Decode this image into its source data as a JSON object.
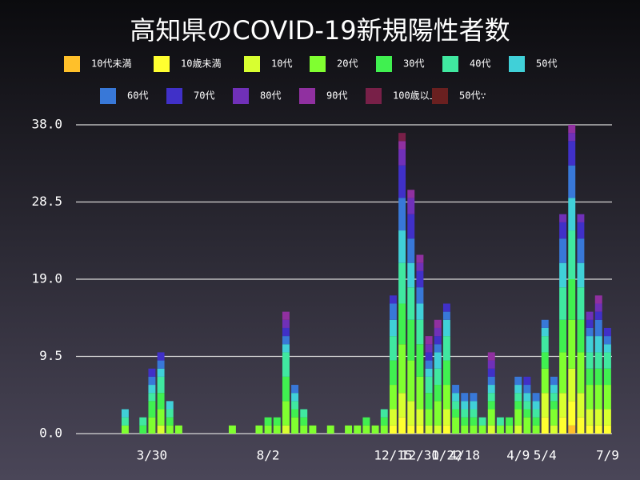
{
  "chart_data": {
    "type": "stacked_bar",
    "title": "高知県のCOVID-19新規陽性者数",
    "categories": [
      null,
      null,
      null,
      null,
      null,
      null,
      null,
      null,
      "3/30",
      null,
      null,
      null,
      null,
      null,
      null,
      null,
      null,
      null,
      null,
      null,
      null,
      "8/2",
      null,
      null,
      null,
      null,
      null,
      null,
      null,
      null,
      null,
      null,
      null,
      null,
      null,
      "12/15",
      null,
      null,
      "12/30",
      null,
      null,
      "1/22",
      null,
      "4/18",
      null,
      null,
      null,
      null,
      null,
      "4/9",
      null,
      null,
      "5/4",
      null,
      null,
      null,
      null,
      null,
      null,
      "7/9"
    ],
    "ylim": [
      0,
      38
    ],
    "yticks": [
      {
        "value": 0,
        "label": "0.0"
      },
      {
        "value": 9.5,
        "label": "9.5"
      },
      {
        "value": 19,
        "label": "19.0"
      },
      {
        "value": 28.5,
        "label": "28.5"
      },
      {
        "value": 38,
        "label": "38.0"
      }
    ],
    "grid": true,
    "series": [
      {
        "name": "10代未満",
        "color": "#ffc02a",
        "values": [
          0,
          0,
          0,
          0,
          0,
          0,
          0,
          0,
          0,
          0,
          0,
          0,
          0,
          0,
          0,
          0,
          0,
          0,
          0,
          0,
          0,
          0,
          0,
          0,
          0,
          0,
          0,
          0,
          0,
          0,
          0,
          0,
          0,
          0,
          0,
          0,
          0,
          0,
          0,
          0,
          0,
          0,
          0,
          0,
          0,
          0,
          0,
          0,
          0,
          0,
          0,
          0,
          0,
          0,
          0,
          1,
          0,
          0,
          0,
          0
        ]
      },
      {
        "name": "10歳未満",
        "color": "#ffff30",
        "values": [
          0,
          0,
          0,
          0,
          0,
          0,
          0,
          0,
          0,
          0,
          0,
          0,
          0,
          0,
          0,
          0,
          0,
          0,
          0,
          0,
          0,
          0,
          0,
          0,
          0,
          0,
          0,
          0,
          0,
          0,
          0,
          0,
          0,
          0,
          0,
          1,
          2,
          1,
          1,
          0,
          0,
          1,
          0,
          0,
          0,
          0,
          0,
          0,
          0,
          0,
          0,
          0,
          2,
          0,
          2,
          3,
          2,
          1,
          1,
          1
        ]
      },
      {
        "name": "10代",
        "color": "#d8ff30",
        "values": [
          0,
          0,
          0,
          0,
          0,
          0,
          0,
          0,
          0,
          1,
          0,
          0,
          0,
          0,
          0,
          0,
          0,
          0,
          0,
          0,
          0,
          0,
          0,
          1,
          0,
          0,
          0,
          0,
          0,
          0,
          0,
          0,
          0,
          0,
          0,
          2,
          3,
          3,
          2,
          1,
          1,
          2,
          0,
          0,
          0,
          0,
          1,
          0,
          0,
          1,
          0,
          0,
          3,
          1,
          3,
          4,
          3,
          2,
          2,
          2
        ]
      },
      {
        "name": "20代",
        "color": "#80ff30",
        "values": [
          0,
          0,
          0,
          0,
          0,
          1,
          0,
          0,
          2,
          2,
          1,
          1,
          0,
          0,
          0,
          0,
          0,
          1,
          0,
          0,
          1,
          1,
          1,
          3,
          2,
          1,
          1,
          0,
          1,
          0,
          1,
          1,
          1,
          1,
          1,
          3,
          6,
          5,
          4,
          2,
          3,
          3,
          2,
          1,
          1,
          1,
          2,
          1,
          1,
          2,
          2,
          1,
          3,
          2,
          5,
          6,
          5,
          3,
          3,
          3
        ]
      },
      {
        "name": "30代",
        "color": "#40f050",
        "values": [
          0,
          0,
          0,
          0,
          0,
          0,
          0,
          1,
          2,
          2,
          1,
          0,
          0,
          0,
          0,
          0,
          0,
          0,
          0,
          0,
          0,
          1,
          1,
          3,
          1,
          1,
          0,
          0,
          0,
          0,
          0,
          0,
          1,
          0,
          1,
          3,
          5,
          5,
          4,
          2,
          2,
          3,
          1,
          1,
          1,
          0,
          1,
          0,
          1,
          1,
          1,
          1,
          2,
          1,
          4,
          5,
          4,
          2,
          2,
          2
        ]
      },
      {
        "name": "40代",
        "color": "#40e8a0",
        "values": [
          0,
          0,
          0,
          0,
          0,
          1,
          0,
          1,
          1,
          2,
          1,
          0,
          0,
          0,
          0,
          0,
          0,
          0,
          0,
          0,
          0,
          0,
          0,
          3,
          1,
          1,
          0,
          0,
          0,
          0,
          0,
          0,
          0,
          0,
          1,
          3,
          5,
          4,
          3,
          2,
          2,
          3,
          1,
          1,
          1,
          1,
          1,
          1,
          0,
          1,
          1,
          1,
          2,
          1,
          4,
          6,
          4,
          2,
          2,
          2
        ]
      },
      {
        "name": "50代",
        "color": "#40d0d8",
        "values": [
          0,
          0,
          0,
          0,
          0,
          1,
          0,
          0,
          1,
          1,
          1,
          0,
          0,
          0,
          0,
          0,
          0,
          0,
          0,
          0,
          0,
          0,
          0,
          1,
          1,
          0,
          0,
          0,
          0,
          0,
          0,
          0,
          0,
          0,
          0,
          2,
          4,
          3,
          2,
          1,
          2,
          2,
          1,
          1,
          1,
          0,
          1,
          0,
          0,
          1,
          1,
          1,
          1,
          1,
          3,
          4,
          3,
          2,
          2,
          1
        ]
      },
      {
        "name": "60代",
        "color": "#3878d8",
        "values": [
          0,
          0,
          0,
          0,
          0,
          0,
          0,
          0,
          1,
          1,
          0,
          0,
          0,
          0,
          0,
          0,
          0,
          0,
          0,
          0,
          0,
          0,
          0,
          1,
          1,
          0,
          0,
          0,
          0,
          0,
          0,
          0,
          0,
          0,
          0,
          2,
          4,
          3,
          2,
          1,
          1,
          1,
          1,
          1,
          1,
          0,
          1,
          0,
          0,
          1,
          1,
          1,
          1,
          1,
          3,
          4,
          3,
          1,
          2,
          1
        ]
      },
      {
        "name": "70代",
        "color": "#4030c8",
        "values": [
          0,
          0,
          0,
          0,
          0,
          0,
          0,
          0,
          1,
          1,
          0,
          0,
          0,
          0,
          0,
          0,
          0,
          0,
          0,
          0,
          0,
          0,
          0,
          1,
          0,
          0,
          0,
          0,
          0,
          0,
          0,
          0,
          0,
          0,
          0,
          1,
          4,
          3,
          2,
          1,
          1,
          1,
          0,
          0,
          0,
          0,
          1,
          0,
          0,
          0,
          1,
          0,
          0,
          0,
          2,
          3,
          2,
          1,
          1,
          1
        ]
      },
      {
        "name": "80代",
        "color": "#7030b8",
        "values": [
          0,
          0,
          0,
          0,
          0,
          0,
          0,
          0,
          0,
          0,
          0,
          0,
          0,
          0,
          0,
          0,
          0,
          0,
          0,
          0,
          0,
          0,
          0,
          1,
          0,
          0,
          0,
          0,
          0,
          0,
          0,
          0,
          0,
          0,
          0,
          0,
          2,
          2,
          1,
          1,
          1,
          0,
          0,
          0,
          0,
          0,
          1,
          0,
          0,
          0,
          0,
          0,
          0,
          0,
          1,
          1,
          1,
          1,
          1,
          0
        ]
      },
      {
        "name": "90代",
        "color": "#9030a0",
        "values": [
          0,
          0,
          0,
          0,
          0,
          0,
          0,
          0,
          0,
          0,
          0,
          0,
          0,
          0,
          0,
          0,
          0,
          0,
          0,
          0,
          0,
          0,
          0,
          1,
          0,
          0,
          0,
          0,
          0,
          0,
          0,
          0,
          0,
          0,
          0,
          0,
          1,
          1,
          1,
          1,
          1,
          0,
          0,
          0,
          0,
          0,
          1,
          0,
          0,
          0,
          0,
          0,
          0,
          0,
          0,
          1,
          0,
          0,
          1,
          0
        ]
      },
      {
        "name": "100歳以上",
        "color": "#782048",
        "values": [
          0,
          0,
          0,
          0,
          0,
          0,
          0,
          0,
          0,
          0,
          0,
          0,
          0,
          0,
          0,
          0,
          0,
          0,
          0,
          0,
          0,
          0,
          0,
          0,
          0,
          0,
          0,
          0,
          0,
          0,
          0,
          0,
          0,
          0,
          0,
          0,
          1,
          0,
          0,
          0,
          0,
          0,
          0,
          0,
          0,
          0,
          0,
          0,
          0,
          0,
          0,
          0,
          0,
          0,
          0,
          0,
          0,
          0,
          0,
          0
        ]
      },
      {
        "name": "50代∵",
        "color": "#6a2020",
        "values": [
          0,
          0,
          0,
          0,
          0,
          0,
          0,
          0,
          0,
          0,
          0,
          0,
          0,
          0,
          0,
          0,
          0,
          0,
          0,
          0,
          0,
          0,
          0,
          0,
          0,
          0,
          0,
          0,
          0,
          0,
          0,
          0,
          0,
          0,
          0,
          0,
          0,
          0,
          0,
          0,
          0,
          0,
          0,
          0,
          0,
          0,
          0,
          0,
          0,
          0,
          0,
          0,
          0,
          0,
          0,
          0,
          0,
          0,
          0,
          0
        ]
      }
    ]
  }
}
